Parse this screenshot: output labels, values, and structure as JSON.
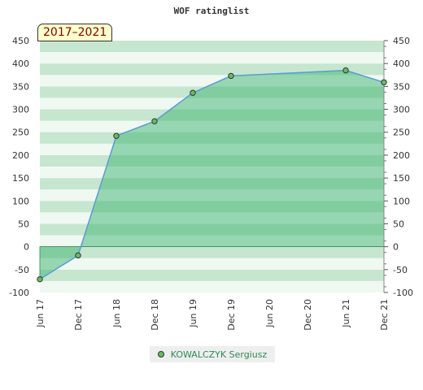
{
  "period_label": "2017–2021",
  "chart_data": {
    "type": "area",
    "title": "WOF ratinglist",
    "categories": [
      "Jun 17",
      "Dec 17",
      "Jun 18",
      "Dec 18",
      "Jun 19",
      "Dec 19",
      "Jun 20",
      "Dec 20",
      "Jun 21",
      "Dec 21"
    ],
    "series": [
      {
        "name": "KOWALCZYK Sergiusz",
        "x": [
          "Jun 17",
          "Dec 17",
          "Jun 18",
          "Dec 18",
          "Jun 19",
          "Dec 19",
          "Jun 21",
          "Dec 21"
        ],
        "values": [
          -71,
          -19,
          242,
          274,
          336,
          373,
          385,
          359
        ]
      }
    ],
    "yticks": [
      450,
      400,
      350,
      300,
      250,
      200,
      150,
      100,
      50,
      0,
      -50,
      -100
    ],
    "ylim": [
      -100,
      450
    ],
    "grid": true,
    "legend_position": "bottom",
    "colors": {
      "line": "#5b9bd5",
      "fill": "#3cb371",
      "marker": "#66bb66",
      "band_light": "#f0f8f2",
      "band_dark": "#c6e6cf"
    }
  }
}
